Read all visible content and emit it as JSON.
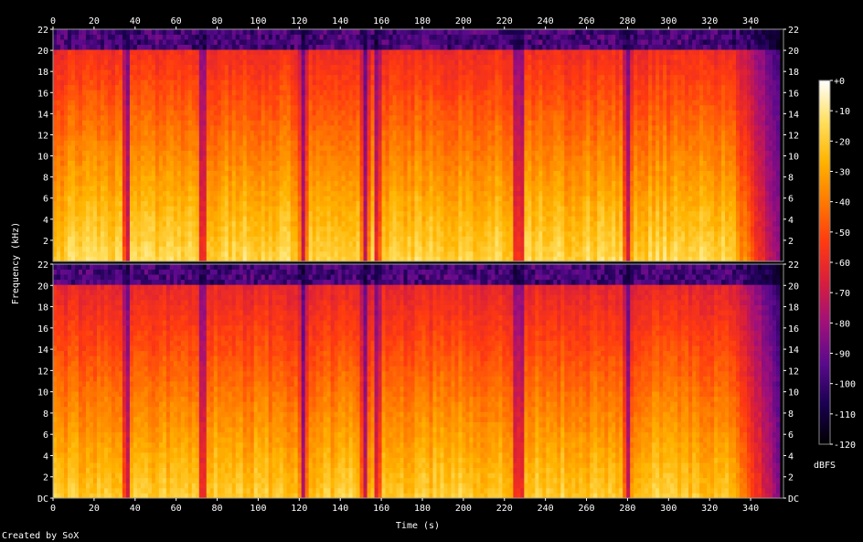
{
  "chart_data": {
    "type": "heatmap",
    "title": "",
    "xlabel": "Time (s)",
    "ylabel": "Frequency (kHz)",
    "xlim": [
      0,
      356
    ],
    "ylim_khz": [
      0,
      22
    ],
    "x_ticks": [
      0,
      20,
      40,
      60,
      80,
      100,
      120,
      140,
      160,
      180,
      200,
      220,
      240,
      260,
      280,
      300,
      320,
      340
    ],
    "channel_top_y_ticks": [
      "2",
      "4",
      "6",
      "8",
      "10",
      "12",
      "14",
      "16",
      "18",
      "20",
      "22"
    ],
    "channel_bottom_y_ticks": [
      "DC",
      "2",
      "4",
      "6",
      "8",
      "10",
      "12",
      "14",
      "16",
      "18",
      "20",
      "22"
    ],
    "channels": 2,
    "colorbar": {
      "label": "dBFS",
      "ticks": [
        "+0",
        "-10",
        "-20",
        "-30",
        "-40",
        "-50",
        "-60",
        "-70",
        "-80",
        "-90",
        "-100",
        "-110",
        "-120"
      ],
      "range_db": [
        -120,
        0
      ],
      "colors": [
        "#000000",
        "#1a0050",
        "#5a0a8c",
        "#a0107a",
        "#d81e3c",
        "#ff3a10",
        "#ff7a00",
        "#ffb400",
        "#ffe060",
        "#ffffff"
      ]
    },
    "features": {
      "content_cutoff_khz": 20,
      "quiet_dips_s": [
        36,
        73,
        122,
        152,
        158,
        226,
        228,
        280
      ],
      "fade_out_start_s": 330,
      "end_s": 350
    }
  },
  "footer": {
    "credit": "Created by SoX"
  }
}
